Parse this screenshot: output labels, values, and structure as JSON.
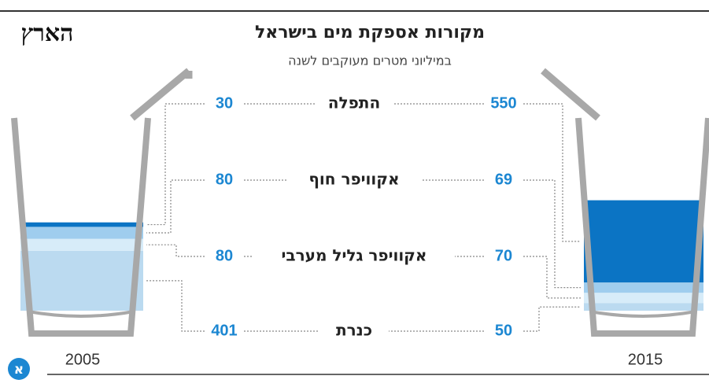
{
  "chart_data": {
    "type": "glass",
    "title": "מקורות אספקת מים בישראל",
    "subtitle": "במיליוני מטרים מעוקבים לשנה",
    "logo": "הארץ",
    "badge": "א",
    "categories": [
      "2005",
      "2015"
    ],
    "series": [
      {
        "name": "התפלה",
        "color": "#0b74c4",
        "values": [
          30,
          550
        ]
      },
      {
        "name": "אקוויפר חוף",
        "color": "#9fcdee",
        "values": [
          80,
          69
        ]
      },
      {
        "name": "אקוויפר גליל מערבי",
        "color": "#d7ecf9",
        "values": [
          80,
          70
        ]
      },
      {
        "name": "כנרת",
        "color": "#bbdaf0",
        "values": [
          401,
          50
        ]
      }
    ]
  }
}
